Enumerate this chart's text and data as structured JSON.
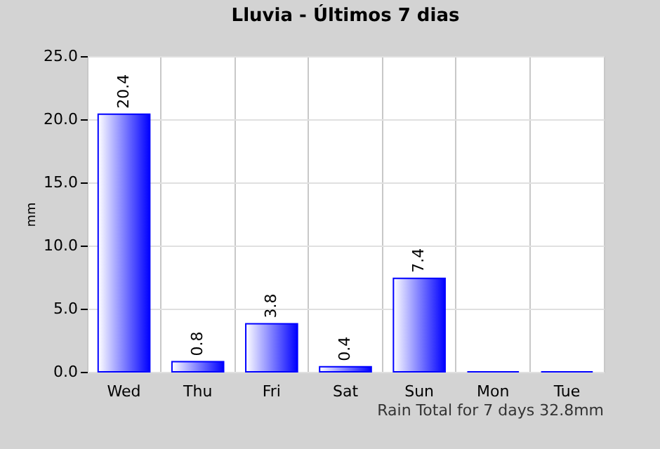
{
  "chart_data": {
    "type": "bar",
    "title": "Lluvia - Últimos 7 dias",
    "ylabel": "mm",
    "categories": [
      "Wed",
      "Thu",
      "Fri",
      "Sat",
      "Sun",
      "Mon",
      "Tue"
    ],
    "values": [
      20.4,
      0.8,
      3.8,
      0.4,
      7.4,
      0,
      0
    ],
    "value_labels": [
      "20.4",
      "0.8",
      "3.8",
      "0.4",
      "7.4",
      null,
      null
    ],
    "color": "#0000ff",
    "ylim": [
      0,
      25
    ],
    "yticks": [
      {
        "value": 0,
        "label": "0.0"
      },
      {
        "value": 5,
        "label": "5.0"
      },
      {
        "value": 10,
        "label": "10.0"
      },
      {
        "value": 15,
        "label": "15.0"
      },
      {
        "value": 20,
        "label": "20.0"
      },
      {
        "value": 25,
        "label": "25.0"
      }
    ],
    "grid": true,
    "annotations": [
      "Rain Total for 7 days 32.8mm"
    ]
  }
}
